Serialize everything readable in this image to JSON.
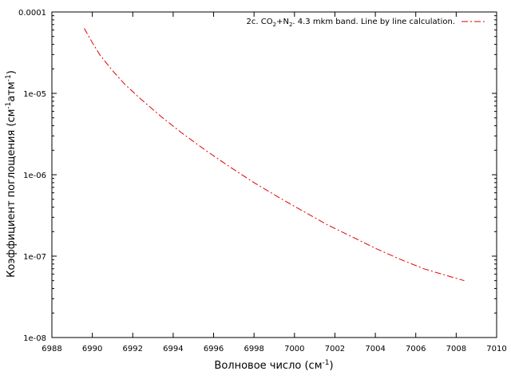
{
  "chart_data": {
    "type": "line",
    "title": "",
    "xlabel": {
      "base": "Волновое число (см",
      "sup": "-1",
      "tail": ")"
    },
    "ylabel": {
      "p1": "Коэффициент поглощения (см",
      "sup1": "-1",
      "p2": "атм",
      "sup2": "-1",
      "p3": ")"
    },
    "xlim": [
      6988,
      7010
    ],
    "ylim": [
      1e-08,
      0.0001
    ],
    "yscale": "log",
    "grid": false,
    "legend_position": "top-right",
    "x_ticks": [
      6988,
      6990,
      6992,
      6994,
      6996,
      6998,
      7000,
      7002,
      7004,
      7006,
      7008,
      7010
    ],
    "y_ticks": [
      {
        "value": 1e-08,
        "label": "1e-08"
      },
      {
        "value": 1e-07,
        "label": "1e-07"
      },
      {
        "value": 1e-06,
        "label": "1e-06"
      },
      {
        "value": 1e-05,
        "label": "1e-05"
      },
      {
        "value": 0.0001,
        "label": "0.0001"
      }
    ],
    "series": [
      {
        "name": {
          "a": "2c. CO",
          "s1": "2",
          "b": "+N",
          "s2": "2",
          "c": ". 4.3 mkm band. Line by line calculation."
        },
        "color": "#e00000",
        "dash": "dash-dot",
        "x": [
          6989.6,
          6990.0,
          6990.4,
          6991.0,
          6991.6,
          6992.4,
          6993.4,
          6994.4,
          6995.6,
          6996.8,
          6998.0,
          6999.2,
          7000.4,
          7001.6,
          7002.8,
          7004.0,
          7005.2,
          7006.4,
          7007.4,
          7008.4
        ],
        "y": [
          6.3e-05,
          4.2e-05,
          2.9e-05,
          1.9e-05,
          1.3e-05,
          8.5e-06,
          5.2e-06,
          3.3e-06,
          2e-06,
          1.25e-06,
          8e-07,
          5.3e-07,
          3.6e-07,
          2.45e-07,
          1.75e-07,
          1.25e-07,
          9.2e-08,
          7e-08,
          5.9e-08,
          5e-08
        ]
      }
    ]
  }
}
